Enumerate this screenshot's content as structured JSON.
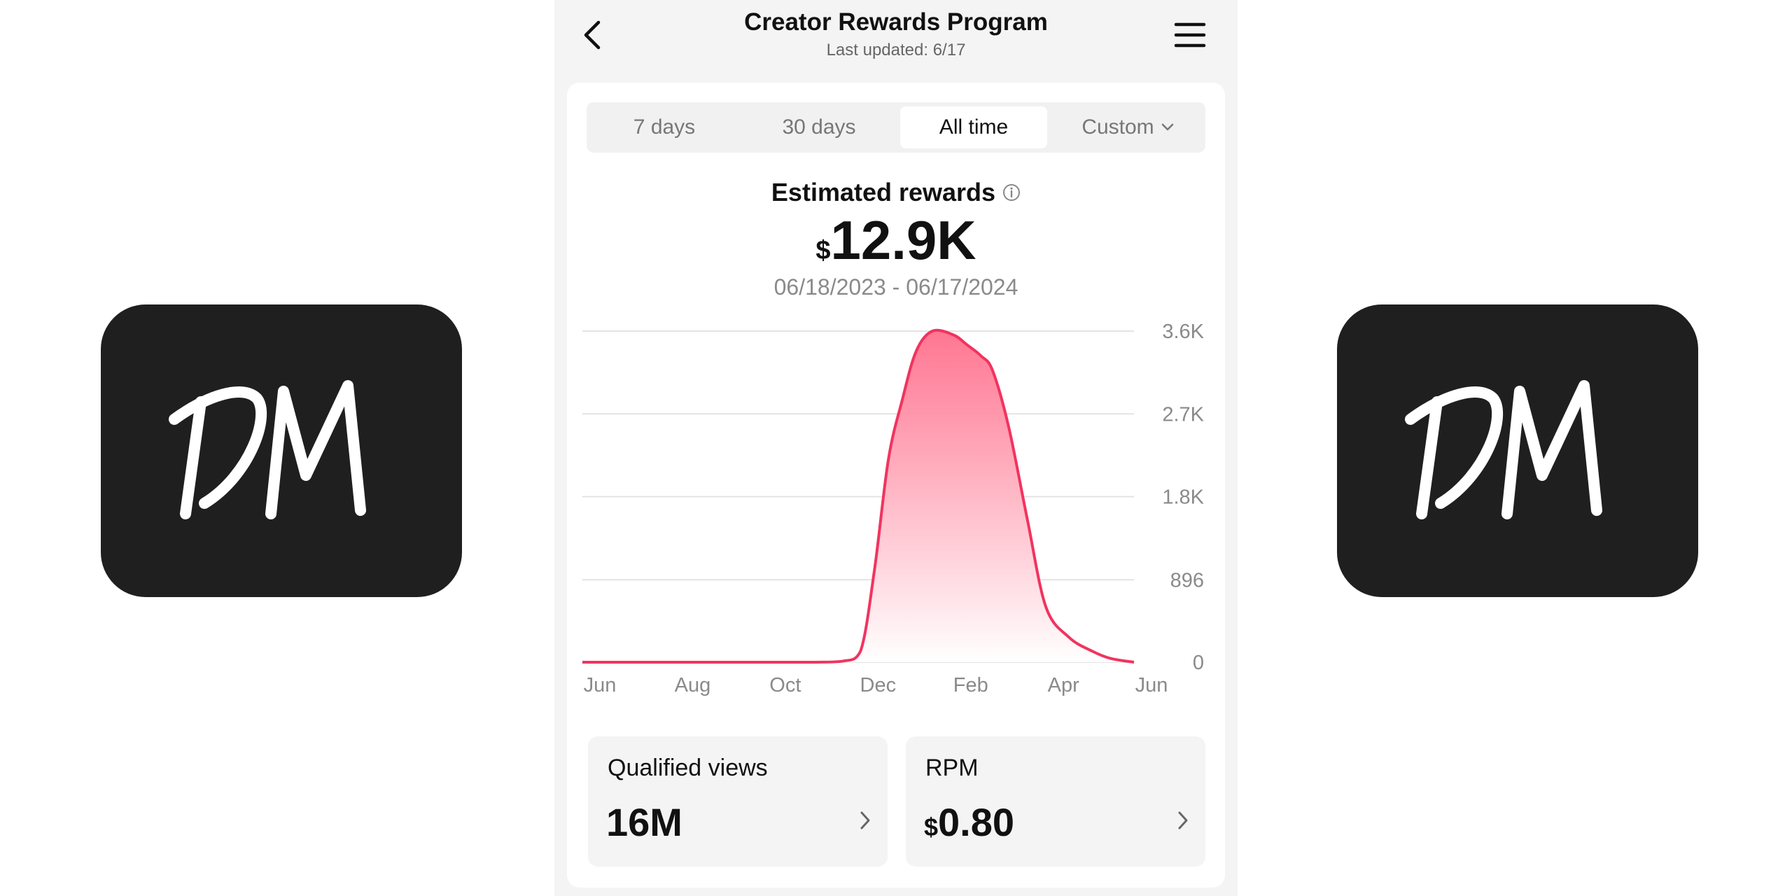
{
  "header": {
    "title": "Creator Rewards Program",
    "subtitle": "Last updated: 6/17"
  },
  "tabs": [
    {
      "label": "7 days",
      "active": false
    },
    {
      "label": "30 days",
      "active": false
    },
    {
      "label": "All time",
      "active": true
    },
    {
      "label": "Custom",
      "active": false
    }
  ],
  "summary": {
    "label": "Estimated rewards",
    "currency": "$",
    "amount": "12.9K",
    "date_range": "06/18/2023 - 06/17/2024"
  },
  "metrics": {
    "views": {
      "label": "Qualified views",
      "value": "16M"
    },
    "rpm": {
      "label": "RPM",
      "currency": "$",
      "value": "0.80"
    }
  },
  "logos": {
    "left": "DM",
    "right": "DM"
  },
  "colors": {
    "accent": "#f2335f",
    "fill_top": "#ff6f8c"
  },
  "chart_data": {
    "type": "area",
    "x_tick_labels": [
      "Jun",
      "Aug",
      "Oct",
      "Dec",
      "Feb",
      "Apr",
      "Jun"
    ],
    "y_tick_labels": [
      "0",
      "896",
      "1.8K",
      "2.7K",
      "3.6K"
    ],
    "y_ticks": [
      0,
      896,
      1800,
      2700,
      3600
    ],
    "ylim": [
      0,
      3600
    ],
    "x_months": [
      0,
      1,
      2,
      3,
      4,
      5,
      5.6,
      6,
      6.3,
      6.6,
      6.9,
      7.2,
      7.55,
      8.0,
      8.3,
      8.6,
      8.85,
      9.2,
      9.6,
      10.0,
      10.5,
      11.0,
      11.4,
      11.9
    ],
    "values": [
      0,
      0,
      0,
      0,
      0,
      0,
      10,
      120,
      1000,
      2200,
      2850,
      3380,
      3600,
      3560,
      3450,
      3330,
      3170,
      2550,
      1550,
      600,
      270,
      120,
      40,
      0
    ],
    "grid": true,
    "legend": "none"
  }
}
